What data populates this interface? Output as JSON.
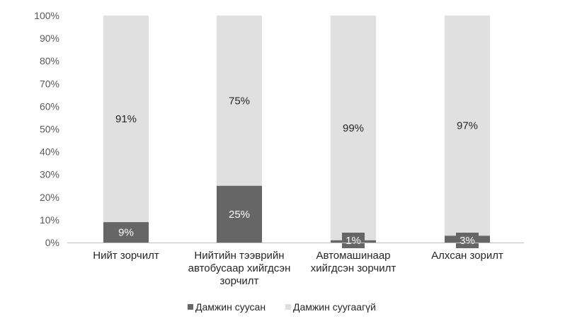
{
  "chart_data": {
    "type": "bar",
    "stacked": true,
    "percent": true,
    "categories": [
      [
        "Нийт зорчилт"
      ],
      [
        "Нийтийн тээврийн",
        "автобусаар хийгдсэн",
        "зорчилт"
      ],
      [
        "Автомашинаар",
        "хийгдсэн зорчилт"
      ],
      [
        "Алхсан зорилт"
      ]
    ],
    "series": [
      {
        "name": "Дамжин суусан",
        "values": [
          9,
          25,
          1,
          3
        ],
        "labels": [
          "9%",
          "25%",
          "1%",
          "3%"
        ],
        "color": "#666666"
      },
      {
        "name": "Дамжин суугаагүй",
        "values": [
          91,
          75,
          99,
          97
        ],
        "labels": [
          "91%",
          "75%",
          "99%",
          "97%"
        ],
        "color": "#e0e0e0"
      }
    ],
    "ylim": [
      0,
      100
    ],
    "yticks": [
      "0%",
      "10%",
      "20%",
      "30%",
      "40%",
      "50%",
      "60%",
      "70%",
      "80%",
      "90%",
      "100%"
    ],
    "grid": false,
    "legend_position": "bottom"
  }
}
